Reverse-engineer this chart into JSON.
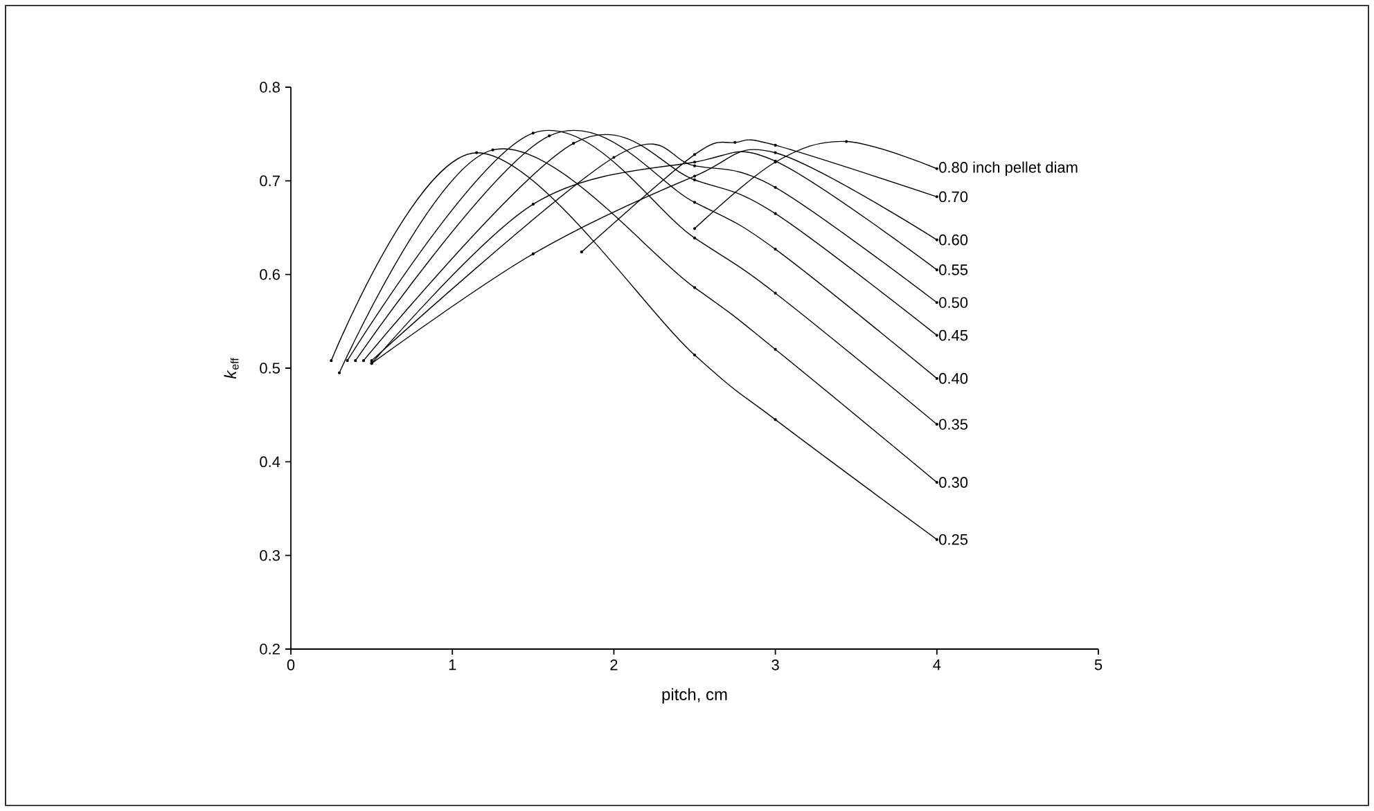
{
  "chart_data": {
    "type": "line",
    "xlabel": "pitch, cm",
    "ylabel": "*k*$_{eff}$",
    "xlim": [
      0,
      5
    ],
    "ylim": [
      0.2,
      0.8
    ],
    "xticks": [
      0,
      1,
      2,
      3,
      4,
      5
    ],
    "yticks": [
      0.2,
      0.3,
      0.4,
      0.5,
      0.6,
      0.7,
      0.8
    ],
    "grid": false,
    "legend": false,
    "marker": "circle",
    "line_style": "solid",
    "series": [
      {
        "name": "0.80 inch pellet diam",
        "color": "#000000",
        "x": [
          2.5,
          3,
          3.44,
          4
        ],
        "values": [
          0.649,
          0.72,
          0.742,
          0.713
        ]
      },
      {
        "name": "0.70",
        "color": "#000000",
        "x": [
          1.8,
          2.5,
          2.75,
          3,
          4
        ],
        "values": [
          0.624,
          0.728,
          0.741,
          0.738,
          0.683
        ]
      },
      {
        "name": "0.60",
        "color": "#000000",
        "x": [
          0.5,
          1.5,
          2.5,
          3,
          4
        ],
        "values": [
          0.505,
          0.622,
          0.705,
          0.73,
          0.637
        ]
      },
      {
        "name": "0.55",
        "color": "#000000",
        "x": [
          0.5,
          1.5,
          2.5,
          3,
          4
        ],
        "values": [
          0.505,
          0.675,
          0.72,
          0.721,
          0.605
        ]
      },
      {
        "name": "0.50",
        "color": "#000000",
        "x": [
          0.5,
          2,
          2.5,
          3,
          4
        ],
        "values": [
          0.508,
          0.725,
          0.716,
          0.693,
          0.57
        ]
      },
      {
        "name": "0.45",
        "color": "#000000",
        "x": [
          0.45,
          1.75,
          2.5,
          3,
          4
        ],
        "values": [
          0.508,
          0.74,
          0.701,
          0.665,
          0.535
        ]
      },
      {
        "name": "0.40",
        "color": "#000000",
        "x": [
          0.4,
          1.6,
          2.5,
          3,
          4
        ],
        "values": [
          0.508,
          0.748,
          0.677,
          0.627,
          0.489
        ]
      },
      {
        "name": "0.35",
        "color": "#000000",
        "x": [
          0.35,
          1.5,
          2.5,
          3,
          4
        ],
        "values": [
          0.508,
          0.751,
          0.639,
          0.58,
          0.44
        ]
      },
      {
        "name": "0.30",
        "color": "#000000",
        "x": [
          0.3,
          1.25,
          2.5,
          3,
          4
        ],
        "values": [
          0.495,
          0.733,
          0.586,
          0.52,
          0.378
        ]
      },
      {
        "name": "0.25",
        "color": "#000000",
        "x": [
          0.25,
          1.15,
          2.5,
          3,
          4
        ],
        "values": [
          0.508,
          0.73,
          0.514,
          0.445,
          0.317
        ]
      }
    ]
  }
}
